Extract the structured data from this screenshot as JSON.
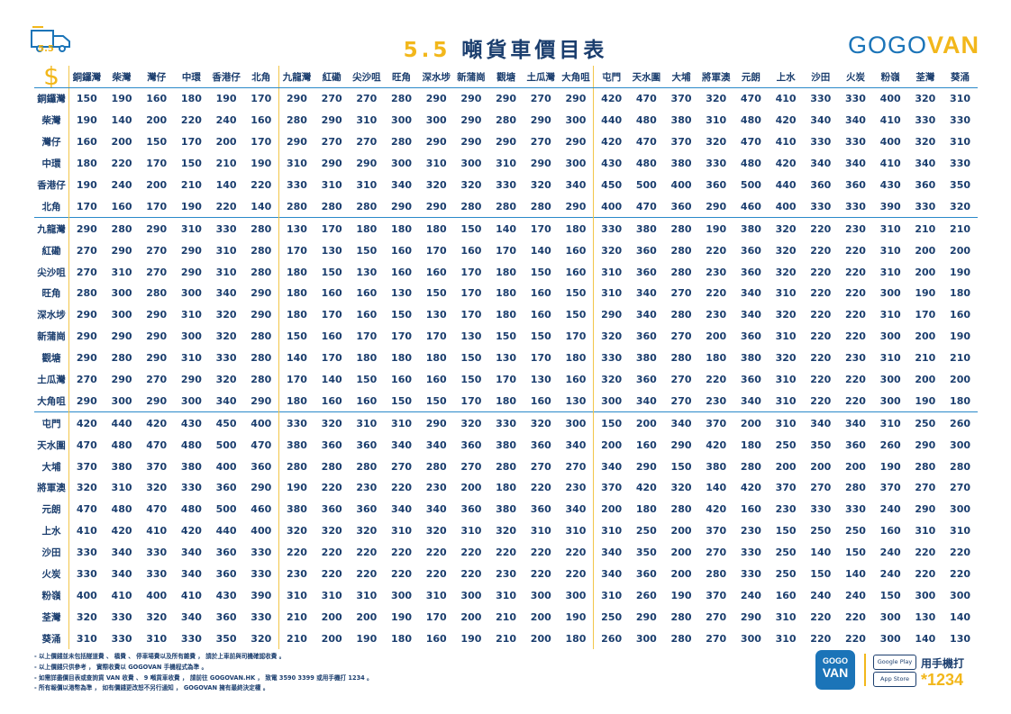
{
  "header": {
    "title_num": "5.5",
    "title_text": "噸貨車價目表",
    "brand_1": "GOGO",
    "brand_2": "VAN",
    "van_badge": "5.5"
  },
  "dollar_icon": "$",
  "columns": [
    "銅鑼灣",
    "柴灣",
    "灣仔",
    "中環",
    "香港仔",
    "北角",
    "九龍灣",
    "紅磡",
    "尖沙咀",
    "旺角",
    "深水埗",
    "新蒲崗",
    "觀塘",
    "土瓜灣",
    "大角咀",
    "屯門",
    "天水圍",
    "大埔",
    "將軍澳",
    "元朗",
    "上水",
    "沙田",
    "火炭",
    "粉嶺",
    "荃灣",
    "葵涌"
  ],
  "rows": [
    {
      "name": "銅鑼灣",
      "values": [
        150,
        190,
        160,
        180,
        190,
        170,
        290,
        270,
        270,
        280,
        290,
        290,
        290,
        270,
        290,
        420,
        470,
        370,
        320,
        470,
        410,
        330,
        330,
        400,
        320,
        310
      ]
    },
    {
      "name": "柴灣",
      "values": [
        190,
        140,
        200,
        220,
        240,
        160,
        280,
        290,
        310,
        300,
        300,
        290,
        280,
        290,
        300,
        440,
        480,
        380,
        310,
        480,
        420,
        340,
        340,
        410,
        330,
        330
      ]
    },
    {
      "name": "灣仔",
      "values": [
        160,
        200,
        150,
        170,
        200,
        170,
        290,
        270,
        270,
        280,
        290,
        290,
        290,
        270,
        290,
        420,
        470,
        370,
        320,
        470,
        410,
        330,
        330,
        400,
        320,
        310
      ]
    },
    {
      "name": "中環",
      "values": [
        180,
        220,
        170,
        150,
        210,
        190,
        310,
        290,
        290,
        300,
        310,
        300,
        310,
        290,
        300,
        430,
        480,
        380,
        330,
        480,
        420,
        340,
        340,
        410,
        340,
        330
      ]
    },
    {
      "name": "香港仔",
      "values": [
        190,
        240,
        200,
        210,
        140,
        220,
        330,
        310,
        310,
        340,
        320,
        320,
        330,
        320,
        340,
        450,
        500,
        400,
        360,
        500,
        440,
        360,
        360,
        430,
        360,
        350
      ]
    },
    {
      "name": "北角",
      "values": [
        170,
        160,
        170,
        190,
        220,
        140,
        280,
        280,
        280,
        290,
        290,
        280,
        280,
        280,
        290,
        400,
        470,
        360,
        290,
        460,
        400,
        330,
        330,
        390,
        330,
        320
      ]
    },
    {
      "name": "九龍灣",
      "values": [
        290,
        280,
        290,
        310,
        330,
        280,
        130,
        170,
        180,
        180,
        180,
        150,
        140,
        170,
        180,
        330,
        380,
        280,
        190,
        380,
        320,
        220,
        230,
        310,
        210,
        210
      ]
    },
    {
      "name": "紅磡",
      "values": [
        270,
        290,
        270,
        290,
        310,
        280,
        170,
        130,
        150,
        160,
        170,
        160,
        170,
        140,
        160,
        320,
        360,
        280,
        220,
        360,
        320,
        220,
        220,
        310,
        200,
        200
      ]
    },
    {
      "name": "尖沙咀",
      "values": [
        270,
        310,
        270,
        290,
        310,
        280,
        180,
        150,
        130,
        160,
        160,
        170,
        180,
        150,
        160,
        310,
        360,
        280,
        230,
        360,
        320,
        220,
        220,
        310,
        200,
        190
      ]
    },
    {
      "name": "旺角",
      "values": [
        280,
        300,
        280,
        300,
        340,
        290,
        180,
        160,
        160,
        130,
        150,
        170,
        180,
        160,
        150,
        310,
        340,
        270,
        220,
        340,
        310,
        220,
        220,
        300,
        190,
        180
      ]
    },
    {
      "name": "深水埗",
      "values": [
        290,
        300,
        290,
        310,
        320,
        290,
        180,
        170,
        160,
        150,
        130,
        170,
        180,
        160,
        150,
        290,
        340,
        280,
        230,
        340,
        320,
        220,
        220,
        310,
        170,
        160
      ]
    },
    {
      "name": "新蒲崗",
      "values": [
        290,
        290,
        290,
        300,
        320,
        280,
        150,
        160,
        170,
        170,
        170,
        130,
        150,
        150,
        170,
        320,
        360,
        270,
        200,
        360,
        310,
        220,
        220,
        300,
        200,
        190
      ]
    },
    {
      "name": "觀塘",
      "values": [
        290,
        280,
        290,
        310,
        330,
        280,
        140,
        170,
        180,
        180,
        180,
        150,
        130,
        170,
        180,
        330,
        380,
        280,
        180,
        380,
        320,
        220,
        230,
        310,
        210,
        210
      ]
    },
    {
      "name": "土瓜灣",
      "values": [
        270,
        290,
        270,
        290,
        320,
        280,
        170,
        140,
        150,
        160,
        160,
        150,
        170,
        130,
        160,
        320,
        360,
        270,
        220,
        360,
        310,
        220,
        220,
        300,
        200,
        200
      ]
    },
    {
      "name": "大角咀",
      "values": [
        290,
        300,
        290,
        300,
        340,
        290,
        180,
        160,
        160,
        150,
        150,
        170,
        180,
        160,
        130,
        300,
        340,
        270,
        230,
        340,
        310,
        220,
        220,
        300,
        190,
        180
      ]
    },
    {
      "name": "屯門",
      "values": [
        420,
        440,
        420,
        430,
        450,
        400,
        330,
        320,
        310,
        310,
        290,
        320,
        330,
        320,
        300,
        150,
        200,
        340,
        370,
        200,
        310,
        340,
        340,
        310,
        250,
        260
      ]
    },
    {
      "name": "天水圍",
      "values": [
        470,
        480,
        470,
        480,
        500,
        470,
        380,
        360,
        360,
        340,
        340,
        360,
        380,
        360,
        340,
        200,
        160,
        290,
        420,
        180,
        250,
        350,
        360,
        260,
        290,
        300
      ]
    },
    {
      "name": "大埔",
      "values": [
        370,
        380,
        370,
        380,
        400,
        360,
        280,
        280,
        280,
        270,
        280,
        270,
        280,
        270,
        270,
        340,
        290,
        150,
        380,
        280,
        200,
        200,
        200,
        190,
        280,
        280
      ]
    },
    {
      "name": "將軍澳",
      "values": [
        320,
        310,
        320,
        330,
        360,
        290,
        190,
        220,
        230,
        220,
        230,
        200,
        180,
        220,
        230,
        370,
        420,
        320,
        140,
        420,
        370,
        270,
        280,
        370,
        270,
        270
      ]
    },
    {
      "name": "元朗",
      "values": [
        470,
        480,
        470,
        480,
        500,
        460,
        380,
        360,
        360,
        340,
        340,
        360,
        380,
        360,
        340,
        200,
        180,
        280,
        420,
        160,
        230,
        330,
        330,
        240,
        290,
        300
      ]
    },
    {
      "name": "上水",
      "values": [
        410,
        420,
        410,
        420,
        440,
        400,
        320,
        320,
        320,
        310,
        320,
        310,
        320,
        310,
        310,
        310,
        250,
        200,
        370,
        230,
        150,
        250,
        250,
        160,
        310,
        310
      ]
    },
    {
      "name": "沙田",
      "values": [
        330,
        340,
        330,
        340,
        360,
        330,
        220,
        220,
        220,
        220,
        220,
        220,
        220,
        220,
        220,
        340,
        350,
        200,
        270,
        330,
        250,
        140,
        150,
        240,
        220,
        220
      ]
    },
    {
      "name": "火炭",
      "values": [
        330,
        340,
        330,
        340,
        360,
        330,
        230,
        220,
        220,
        220,
        220,
        220,
        230,
        220,
        220,
        340,
        360,
        200,
        280,
        330,
        250,
        150,
        140,
        240,
        220,
        220
      ]
    },
    {
      "name": "粉嶺",
      "values": [
        400,
        410,
        400,
        410,
        430,
        390,
        310,
        310,
        310,
        300,
        310,
        300,
        310,
        300,
        300,
        310,
        260,
        190,
        370,
        240,
        160,
        240,
        240,
        150,
        300,
        300
      ]
    },
    {
      "name": "荃灣",
      "values": [
        320,
        330,
        320,
        340,
        360,
        330,
        210,
        200,
        200,
        190,
        170,
        200,
        210,
        200,
        190,
        250,
        290,
        280,
        270,
        290,
        310,
        220,
        220,
        300,
        130,
        140
      ]
    },
    {
      "name": "葵涌",
      "values": [
        310,
        330,
        310,
        330,
        350,
        320,
        210,
        200,
        190,
        180,
        160,
        190,
        210,
        200,
        180,
        260,
        300,
        280,
        270,
        300,
        310,
        220,
        220,
        300,
        140,
        130
      ]
    }
  ],
  "notes": [
    "- 以上價錢並未包括隧道費 、 橋費 、 停車場費以及所有雜費 ， 請於上車前與司機確認收費 。",
    "- 以上價錢只供參考 ， 實際收費以 GOGOVAN 手機程式為準 。",
    "- 如需詳盡價目表或查詢貨 VAN 收費 、 9 噸貨車收費 ， 請前往 GOGOVAN.HK ， 致電 3590 3399 或用手機打 1234 。",
    "- 所有報價以港幣為準 ， 如有價錢更改恕不另行通知 ， GOGOVAN 擁有最終決定權 。"
  ],
  "footer": {
    "app_logo_1": "GOGO",
    "app_logo_2": "VAN",
    "google_play": "Google Play",
    "app_store": "App Store",
    "phone_text": "用手機打",
    "phone_num": "*1234"
  },
  "colors": {
    "navy": "#1b3e6e",
    "yellow": "#f2b71b",
    "blue": "#1b74b8"
  }
}
